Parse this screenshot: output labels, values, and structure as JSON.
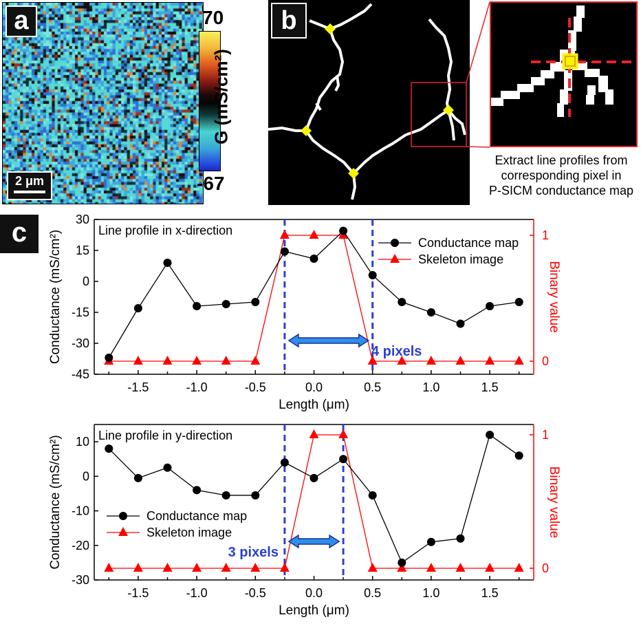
{
  "panel_a": {
    "label": "a",
    "scalebar": "2 μm",
    "colorbar": {
      "max": "70",
      "min": "-67",
      "title": "G (mS/cm²)"
    }
  },
  "panel_b": {
    "label": "b",
    "caption_lines": [
      "Extract line profiles from",
      "corresponding pixel in",
      "P-SICM conductance map"
    ]
  },
  "panel_c": {
    "label": "c"
  },
  "chart_data": [
    {
      "type": "line",
      "title": "Line profile in x-direction",
      "xlabel": "Length (μm)",
      "ylabel": "Conductance (mS/cm²)",
      "ylabel_right": "Binary value",
      "xlim": [
        -1.875,
        1.875
      ],
      "ylim": [
        -45,
        30
      ],
      "yticks": [
        30,
        15,
        0,
        -15,
        -30,
        -45
      ],
      "yticks_right": [
        "1",
        "0"
      ],
      "xticks": [
        "-1.5",
        "-1.0",
        "-0.5",
        "0.0",
        "0.5",
        "1.0",
        "1.5"
      ],
      "legend_position": "top-right",
      "series": [
        {
          "name": "Conductance map",
          "color": "#000000",
          "marker": "circle",
          "x": [
            -1.75,
            -1.5,
            -1.25,
            -1.0,
            -0.75,
            -0.5,
            -0.25,
            0.0,
            0.25,
            0.5,
            0.75,
            1.0,
            1.25,
            1.5,
            1.75
          ],
          "y": [
            -37,
            -13,
            9,
            -12,
            -11,
            -10,
            14.5,
            11,
            24.5,
            3,
            -10,
            -15,
            -20.5,
            -12,
            -10
          ]
        },
        {
          "name": "Skeleton image",
          "color": "#ff0000",
          "marker": "triangle",
          "axis": "right",
          "x": [
            -1.75,
            -1.5,
            -1.25,
            -1.0,
            -0.75,
            -0.5,
            -0.25,
            0.0,
            0.25,
            0.5,
            0.75,
            1.0,
            1.25,
            1.5,
            1.75
          ],
          "y": [
            0,
            0,
            0,
            0,
            0,
            0,
            1,
            1,
            1,
            0,
            0,
            0,
            0,
            0,
            0
          ]
        }
      ],
      "vlines": [
        -0.25,
        0.5
      ],
      "annotation": "4 pixels"
    },
    {
      "type": "line",
      "title": "Line profile in y-direction",
      "xlabel": "Length (μm)",
      "ylabel": "Conductance (mS/cm²)",
      "ylabel_right": "Binary value",
      "xlim": [
        -1.875,
        1.875
      ],
      "ylim": [
        -30,
        15
      ],
      "yticks": [
        10,
        0,
        -10,
        -20,
        -30
      ],
      "yticks_right": [
        "1",
        "0"
      ],
      "xticks": [
        "-1.5",
        "-1.0",
        "-0.5",
        "0.0",
        "0.5",
        "1.0",
        "1.5"
      ],
      "legend_position": "bottom-left",
      "series": [
        {
          "name": "Conductance map",
          "color": "#000000",
          "marker": "circle",
          "x": [
            -1.75,
            -1.5,
            -1.25,
            -1.0,
            -0.75,
            -0.5,
            -0.25,
            0.0,
            0.25,
            0.5,
            0.75,
            1.0,
            1.25,
            1.5,
            1.75
          ],
          "y": [
            8,
            -0.5,
            2.5,
            -4,
            -5.5,
            -5.5,
            4,
            -0.5,
            5,
            -5.5,
            -25,
            -19,
            -18,
            12,
            6
          ]
        },
        {
          "name": "Skeleton image",
          "color": "#ff0000",
          "marker": "triangle",
          "axis": "right",
          "x": [
            -1.75,
            -1.5,
            -1.25,
            -1.0,
            -0.75,
            -0.5,
            -0.25,
            0.0,
            0.25,
            0.5,
            0.75,
            1.0,
            1.25,
            1.5,
            1.75
          ],
          "y": [
            0,
            0,
            0,
            0,
            0,
            0,
            0,
            1,
            1,
            0,
            0,
            0,
            0,
            0,
            0
          ]
        }
      ],
      "vlines": [
        -0.25,
        0.25
      ],
      "annotation": "3 pixels"
    }
  ]
}
